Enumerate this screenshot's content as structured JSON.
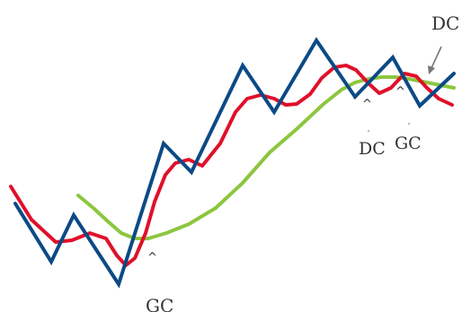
{
  "chart_data": {
    "type": "line",
    "series": [
      {
        "key": "price",
        "color": "#0b4a86",
        "points": [
          [
            17,
            227
          ],
          [
            57,
            292
          ],
          [
            82,
            240
          ],
          [
            132,
            317
          ],
          [
            182,
            160
          ],
          [
            213,
            192
          ],
          [
            270,
            73
          ],
          [
            305,
            125
          ],
          [
            352,
            45
          ],
          [
            395,
            108
          ],
          [
            437,
            64
          ],
          [
            467,
            118
          ],
          [
            505,
            82
          ]
        ]
      },
      {
        "key": "short_ma",
        "color": "#e0102a",
        "points": [
          [
            12,
            208
          ],
          [
            35,
            245
          ],
          [
            62,
            270
          ],
          [
            80,
            268
          ],
          [
            100,
            260
          ],
          [
            118,
            266
          ],
          [
            130,
            285
          ],
          [
            140,
            296
          ],
          [
            150,
            288
          ],
          [
            162,
            260
          ],
          [
            172,
            225
          ],
          [
            184,
            195
          ],
          [
            195,
            182
          ],
          [
            210,
            178
          ],
          [
            225,
            185
          ],
          [
            245,
            160
          ],
          [
            262,
            125
          ],
          [
            275,
            110
          ],
          [
            290,
            106
          ],
          [
            305,
            110
          ],
          [
            318,
            117
          ],
          [
            330,
            116
          ],
          [
            345,
            105
          ],
          [
            358,
            87
          ],
          [
            372,
            75
          ],
          [
            385,
            73
          ],
          [
            396,
            78
          ],
          [
            410,
            93
          ],
          [
            422,
            104
          ],
          [
            435,
            98
          ],
          [
            450,
            82
          ],
          [
            463,
            85
          ],
          [
            475,
            98
          ],
          [
            488,
            110
          ],
          [
            503,
            117
          ]
        ]
      },
      {
        "key": "long_ma",
        "color": "#8cc63f",
        "points": [
          [
            87,
            218
          ],
          [
            105,
            233
          ],
          [
            120,
            247
          ],
          [
            135,
            260
          ],
          [
            150,
            266
          ],
          [
            165,
            266
          ],
          [
            185,
            260
          ],
          [
            210,
            250
          ],
          [
            240,
            232
          ],
          [
            270,
            204
          ],
          [
            300,
            170
          ],
          [
            330,
            144
          ],
          [
            360,
            116
          ],
          [
            380,
            100
          ],
          [
            395,
            92
          ],
          [
            410,
            88
          ],
          [
            425,
            86
          ],
          [
            440,
            86
          ],
          [
            455,
            88
          ],
          [
            475,
            92
          ],
          [
            505,
            98
          ]
        ]
      }
    ],
    "annotations": [
      {
        "text": "GC",
        "role": "golden-cross-bottom"
      },
      {
        "text": "DC",
        "role": "dead-cross-middle"
      },
      {
        "text": "GC",
        "role": "golden-cross-middle"
      },
      {
        "text": "DC",
        "role": "dead-cross-top"
      }
    ],
    "markers": [
      "^",
      "^",
      "^"
    ]
  }
}
